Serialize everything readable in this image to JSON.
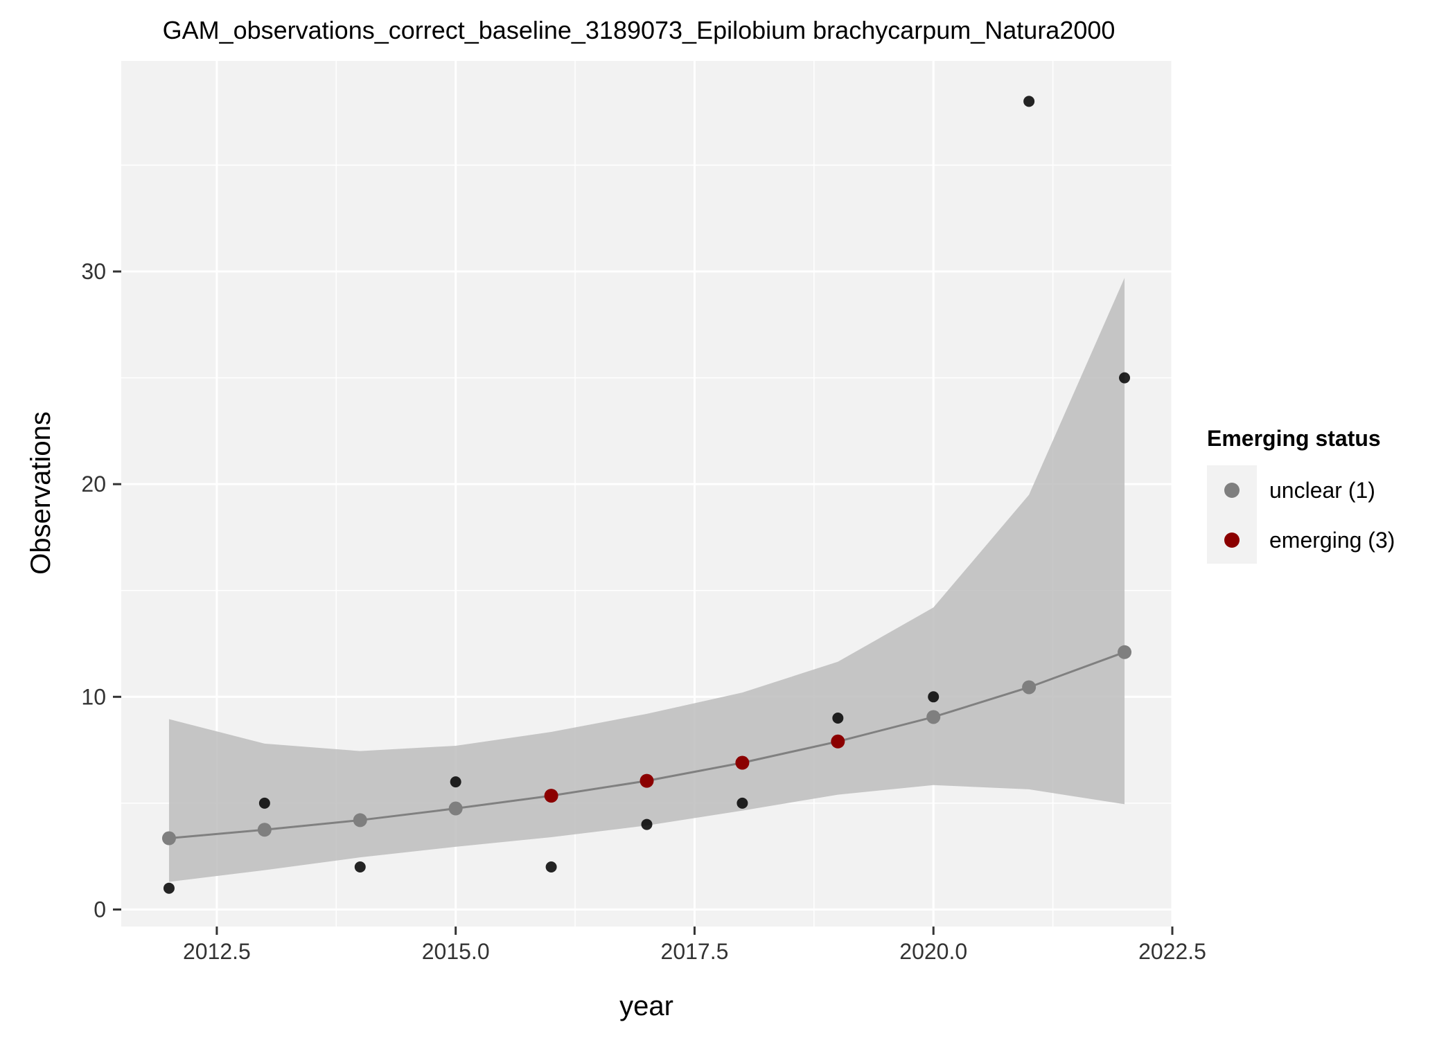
{
  "chart_data": {
    "type": "scatter",
    "title": "GAM_observations_correct_baseline_3189073_Epilobium brachycarpum_Natura2000",
    "xlabel": "year",
    "ylabel": "Observations",
    "xlim": [
      2011.5,
      2022.5
    ],
    "ylim": [
      -0.8,
      39.9
    ],
    "x_ticks": [
      2012.5,
      2015.0,
      2017.5,
      2020.0,
      2022.5
    ],
    "x_tick_labels": [
      "2012.5",
      "2015.0",
      "2017.5",
      "2020.0",
      "2022.5"
    ],
    "y_ticks": [
      0,
      10,
      20,
      30
    ],
    "y_tick_labels": [
      "0",
      "10",
      "20",
      "30"
    ],
    "grid": true,
    "legend": {
      "title": "Emerging status",
      "placement": "right",
      "entries": [
        {
          "label": "unclear (1)",
          "color": "#7f7f7f"
        },
        {
          "label": "emerging (3)",
          "color": "#8b0000"
        }
      ]
    },
    "observed": {
      "x": [
        2012,
        2013,
        2014,
        2015,
        2016,
        2017,
        2018,
        2019,
        2020,
        2021,
        2022
      ],
      "y": [
        1,
        5,
        2,
        6,
        2,
        4,
        5,
        9,
        10,
        38,
        25
      ],
      "color": "#000000"
    },
    "gam_fit": {
      "x": [
        2012,
        2013,
        2014,
        2015,
        2016,
        2017,
        2018,
        2019,
        2020,
        2021,
        2022
      ],
      "y": [
        3.35,
        3.75,
        4.2,
        4.75,
        5.35,
        6.05,
        6.9,
        7.9,
        9.05,
        10.45,
        12.1
      ],
      "status": [
        "unclear (1)",
        "unclear (1)",
        "unclear (1)",
        "unclear (1)",
        "emerging (3)",
        "emerging (3)",
        "emerging (3)",
        "emerging (3)",
        "unclear (1)",
        "unclear (1)",
        "unclear (1)"
      ],
      "line_color": "#808080"
    },
    "confidence_band": {
      "x": [
        2012,
        2013,
        2014,
        2015,
        2016,
        2017,
        2018,
        2019,
        2020,
        2021,
        2022
      ],
      "lower": [
        1.3,
        1.85,
        2.45,
        2.95,
        3.4,
        3.95,
        4.65,
        5.4,
        5.85,
        5.65,
        4.95
      ],
      "upper": [
        8.95,
        7.8,
        7.45,
        7.7,
        8.35,
        9.2,
        10.2,
        11.65,
        14.2,
        19.5,
        29.7
      ],
      "color": "#bdbdbd"
    },
    "colors": {
      "panel": "#f2f2f2",
      "grid": "#ffffff"
    }
  }
}
